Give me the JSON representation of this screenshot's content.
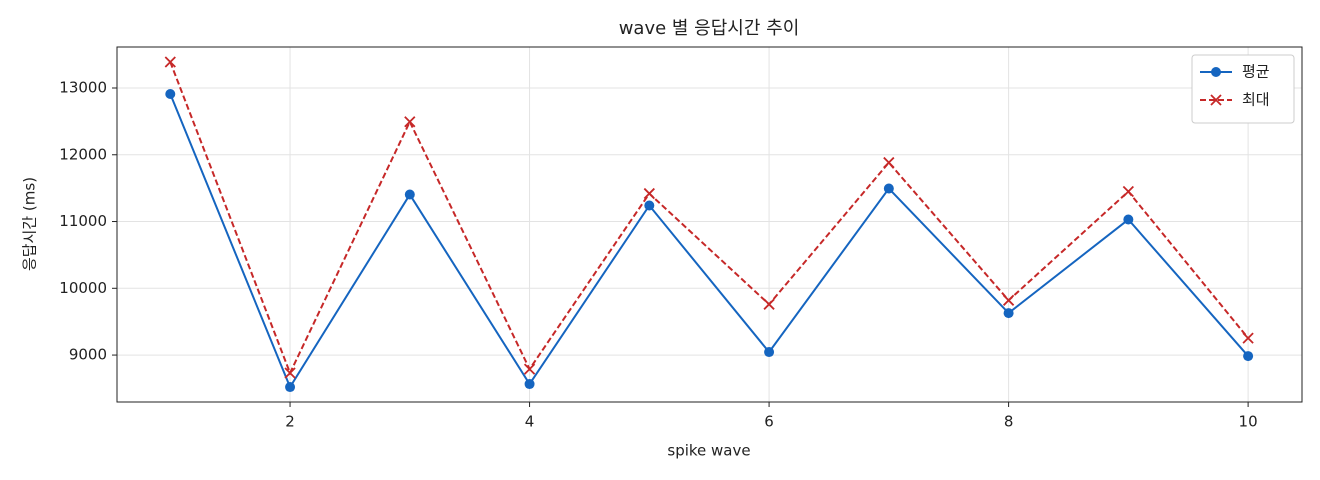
{
  "chart_data": {
    "type": "line",
    "title": "wave 별 응답시간 추이",
    "x_label": "spike wave",
    "y_label": "응답시간 (ms)",
    "x": [
      1,
      2,
      3,
      4,
      5,
      6,
      7,
      8,
      9,
      10
    ],
    "series": [
      {
        "name": "평균",
        "color": "#1565c0",
        "marker": "circle",
        "linestyle": "solid",
        "values": [
          12910,
          8521,
          11404,
          8566,
          11240,
          9045,
          11494,
          9629,
          11030,
          8985
        ]
      },
      {
        "name": "최대",
        "color": "#c62828",
        "marker": "x",
        "linestyle": "dashed",
        "values": [
          13389,
          8731,
          12494,
          8790,
          11419,
          9760,
          11883,
          9820,
          11449,
          9254
        ]
      }
    ],
    "xlim": [
      0.555,
      10.45
    ],
    "xticks": [
      2,
      4,
      6,
      8,
      10
    ],
    "ylim": [
      8297,
      13614
    ],
    "yticks": [
      9000,
      10000,
      11000,
      12000,
      13000
    ],
    "grid": true,
    "legend": "upper right"
  }
}
